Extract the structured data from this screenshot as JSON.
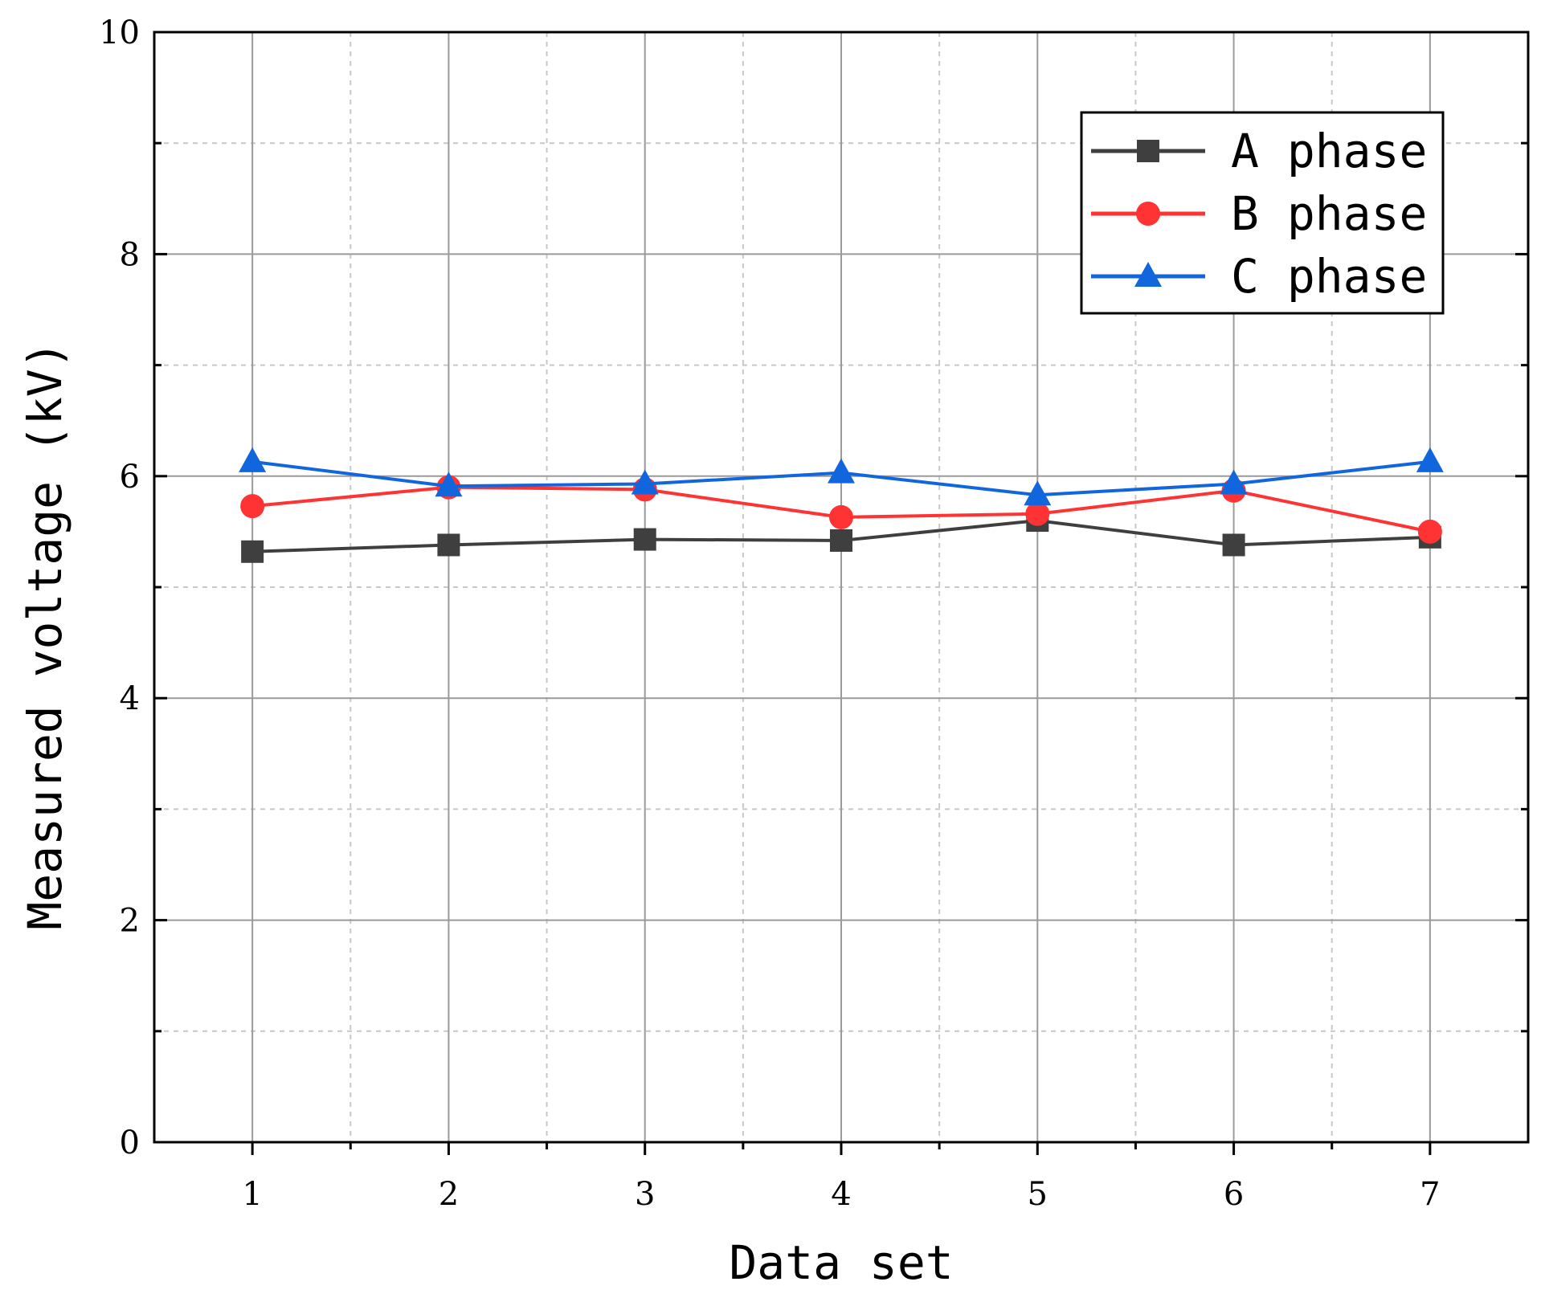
{
  "chart_data": {
    "type": "line",
    "title": "",
    "xlabel": "Data set",
    "ylabel": "Measured voltage (kV)",
    "x": [
      1,
      2,
      3,
      4,
      5,
      6,
      7
    ],
    "x_tick_labels": [
      "1",
      "2",
      "3",
      "4",
      "5",
      "6",
      "7"
    ],
    "xlim": [
      0.5,
      7.5
    ],
    "ylim": [
      0,
      10
    ],
    "y_ticks": [
      0,
      2,
      4,
      6,
      8,
      10
    ],
    "y_tick_labels": [
      "0",
      "2",
      "4",
      "6",
      "8",
      "10"
    ],
    "y_minor_ticks": [
      1,
      3,
      5,
      7,
      9
    ],
    "x_minor_ticks": [
      1.5,
      2.5,
      3.5,
      4.5,
      5.5,
      6.5
    ],
    "grid": true,
    "legend_position": "top-right",
    "series": [
      {
        "name": "A phase",
        "color": "#3f3f3f",
        "marker": "square",
        "values": [
          5.32,
          5.38,
          5.43,
          5.42,
          5.6,
          5.38,
          5.45
        ]
      },
      {
        "name": "B phase",
        "color": "#ff3333",
        "marker": "circle",
        "values": [
          5.73,
          5.9,
          5.88,
          5.63,
          5.66,
          5.87,
          5.5
        ]
      },
      {
        "name": "C phase",
        "color": "#1166dd",
        "marker": "triangle",
        "values": [
          6.13,
          5.91,
          5.93,
          6.03,
          5.83,
          5.93,
          6.13
        ]
      }
    ]
  }
}
